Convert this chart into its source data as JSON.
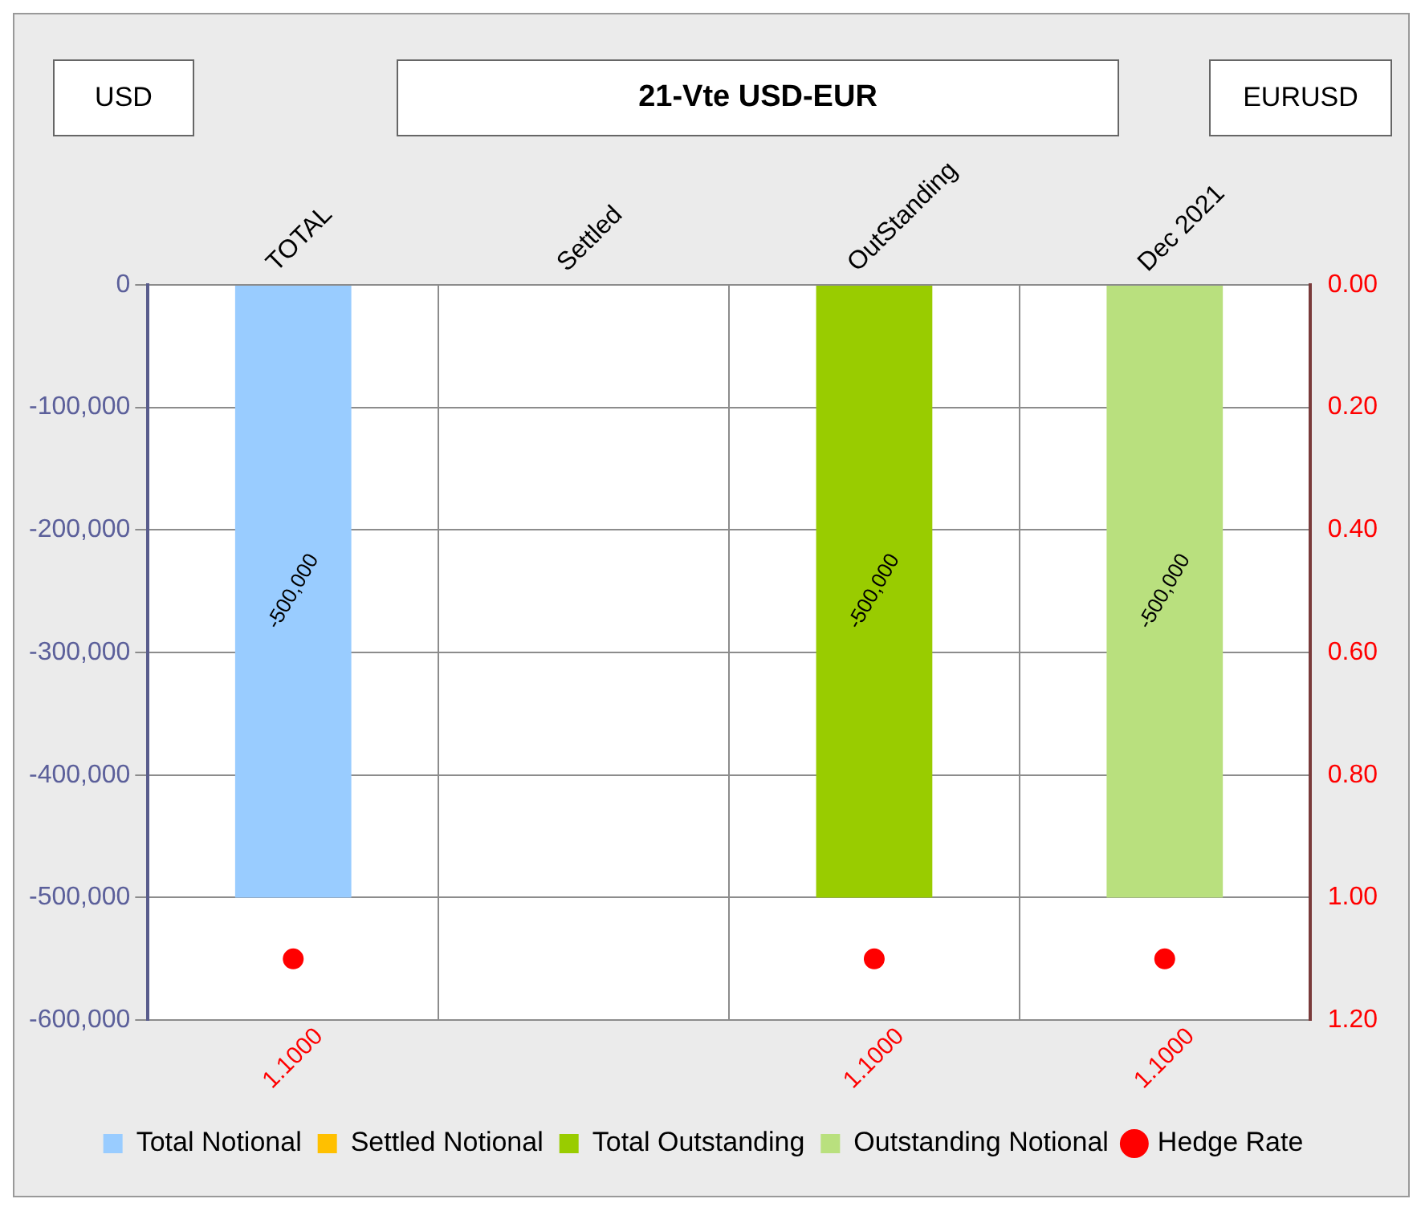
{
  "chart_data": {
    "type": "bar",
    "title": "21-Vte USD-EUR",
    "annotations": [
      "USD",
      "EURUSD"
    ],
    "categories": [
      "TOTAL",
      "Settled",
      "OutStanding",
      "Dec 2021"
    ],
    "stacked": true,
    "series": [
      {
        "name": "Total Notional",
        "color": "#99ccff",
        "values": [
          -500000,
          null,
          null,
          null
        ],
        "value_labels": [
          "-500,000",
          null,
          null,
          null
        ]
      },
      {
        "name": "Settled Notional",
        "color": "#ffc000",
        "values": [
          null,
          null,
          null,
          null
        ]
      },
      {
        "name": "Total Outstanding",
        "color": "#99cc00",
        "values": [
          null,
          null,
          -500000,
          null
        ],
        "value_labels": [
          null,
          null,
          "-500,000",
          null
        ]
      },
      {
        "name": "Outstanding Notional",
        "color": "#b9e07e",
        "values": [
          null,
          null,
          null,
          -500000
        ],
        "value_labels": [
          null,
          null,
          null,
          "-500,000"
        ]
      },
      {
        "name": "Hedge Rate",
        "type": "scatter",
        "axis": "y2",
        "marker": "circle",
        "color": "#ff0000",
        "x": [
          "TOTAL",
          "Settled",
          "OutStanding",
          "Dec 2021"
        ],
        "values": [
          1.1,
          null,
          1.1,
          1.1
        ],
        "value_labels": [
          "1.1000",
          null,
          "1.1000",
          "1.1000"
        ]
      }
    ],
    "ylim": [
      -600000,
      0
    ],
    "yticks": [
      {
        "value": -600000,
        "label": "-600,000"
      },
      {
        "value": -500000,
        "label": "-500,000"
      },
      {
        "value": -400000,
        "label": "-400,000"
      },
      {
        "value": -300000,
        "label": "-300,000"
      },
      {
        "value": -200000,
        "label": "-200,000"
      },
      {
        "value": -100000,
        "label": "-100,000"
      },
      0
    ],
    "y2lim": [
      1.2,
      0
    ],
    "y2ticks": [
      {
        "value": 0,
        "label": "0.00"
      },
      {
        "value": 0.2,
        "label": "0.20"
      },
      {
        "value": 0.4,
        "label": "0.40"
      },
      {
        "value": 0.6,
        "label": "0.60"
      },
      {
        "value": 0.8,
        "label": "0.80"
      },
      {
        "value": 1,
        "label": "1.00"
      },
      {
        "value": 1.2,
        "label": "1.20"
      }
    ],
    "grid": true,
    "legend": "bottom"
  }
}
